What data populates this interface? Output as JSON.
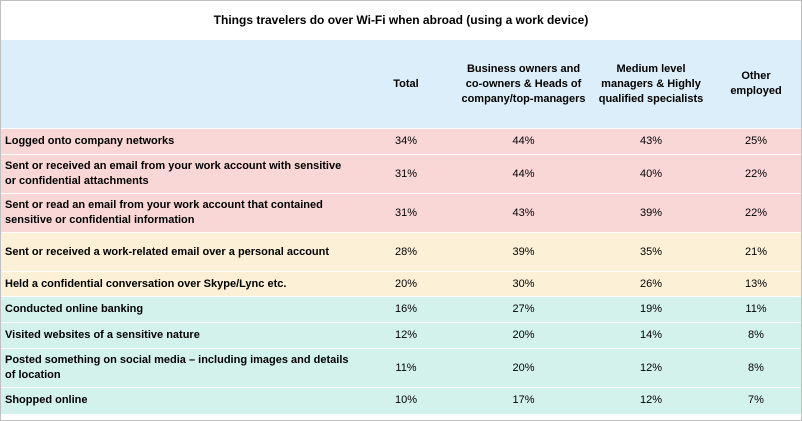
{
  "chart_data": {
    "type": "table",
    "title": "Things travelers do over Wi-Fi when abroad (using a work device)",
    "columns": [
      "",
      "Total",
      "Business owners and co-owners & Heads of company/top-managers",
      "Medium level managers & Highly qualified specialists",
      "Other employed"
    ],
    "rows": [
      {
        "label": "Logged onto company networks",
        "values": [
          "34%",
          "44%",
          "43%",
          "25%"
        ],
        "group": "red"
      },
      {
        "label": "Sent or received an email from your work account with sensitive or confidential attachments",
        "values": [
          "31%",
          "44%",
          "40%",
          "22%"
        ],
        "group": "red"
      },
      {
        "label": "Sent or read an email from your work account that contained sensitive or confidential information",
        "values": [
          "31%",
          "43%",
          "39%",
          "22%"
        ],
        "group": "red"
      },
      {
        "label": "Sent or received a work-related email over a personal account",
        "values": [
          "28%",
          "39%",
          "35%",
          "21%"
        ],
        "group": "yellow"
      },
      {
        "label": "Held a confidential conversation over Skype/Lync etc.",
        "values": [
          "20%",
          "30%",
          "26%",
          "13%"
        ],
        "group": "yellow"
      },
      {
        "label": "Conducted online banking",
        "values": [
          "16%",
          "27%",
          "19%",
          "11%"
        ],
        "group": "green"
      },
      {
        "label": "Visited websites of a sensitive nature",
        "values": [
          "12%",
          "20%",
          "14%",
          "8%"
        ],
        "group": "green"
      },
      {
        "label": "Posted something on social media – including images and details of location",
        "values": [
          "11%",
          "20%",
          "12%",
          "8%"
        ],
        "group": "green"
      },
      {
        "label": "Shopped online",
        "values": [
          "10%",
          "17%",
          "12%",
          "7%"
        ],
        "group": "green"
      }
    ]
  },
  "colors": {
    "header": "#dbeef9",
    "red": "#f9d7d6",
    "yellow": "#fcf1d6",
    "green": "#d4f2ec"
  }
}
